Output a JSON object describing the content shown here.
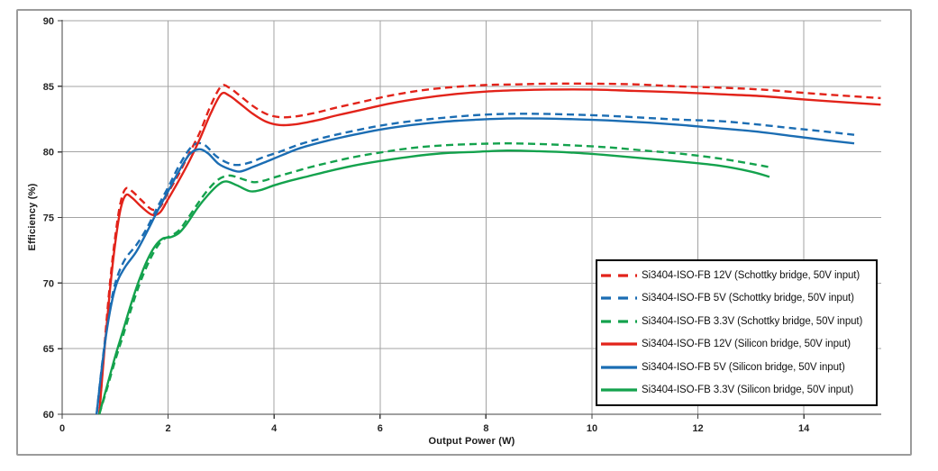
{
  "window": {
    "background": "#ffffff",
    "frame_border_color": "#9b9b9b"
  },
  "chart_data": {
    "type": "line",
    "title": "",
    "xlabel": "Output Power (W)",
    "ylabel": "Efficiency (%)",
    "xlim": [
      0,
      15.46
    ],
    "ylim": [
      60,
      90
    ],
    "x_ticks": [
      0,
      2,
      4,
      6,
      8,
      10,
      12,
      14
    ],
    "y_ticks": [
      60,
      65,
      70,
      75,
      80,
      85,
      90
    ],
    "grid": true,
    "legend_position": "inside-bottom-right",
    "colors": {
      "grid": "#a3a3a3",
      "axis": "#404040",
      "tick_text": "#262626",
      "legend_border": "#000000",
      "red": "#e2231a",
      "blue": "#1b6db3",
      "green": "#14a24d"
    },
    "series": [
      {
        "name": "Si3404-ISO-FB 12V (Schottky bridge, 50V input)",
        "color": "#e2231a",
        "dash": true,
        "points": [
          [
            0.7,
            60
          ],
          [
            0.8,
            65.3
          ],
          [
            0.9,
            69.9
          ],
          [
            1.0,
            73.5
          ],
          [
            1.1,
            76.1
          ],
          [
            1.2,
            77.2
          ],
          [
            1.32,
            77.0
          ],
          [
            1.5,
            76.3
          ],
          [
            1.7,
            75.6
          ],
          [
            1.85,
            75.8
          ],
          [
            2.0,
            76.9
          ],
          [
            2.2,
            78.3
          ],
          [
            2.4,
            79.9
          ],
          [
            2.6,
            81.5
          ],
          [
            2.8,
            83.5
          ],
          [
            3.0,
            85.0
          ],
          [
            3.15,
            84.9
          ],
          [
            3.35,
            84.3
          ],
          [
            3.6,
            83.5
          ],
          [
            3.85,
            82.9
          ],
          [
            4.1,
            82.65
          ],
          [
            4.4,
            82.7
          ],
          [
            4.8,
            83.0
          ],
          [
            5.2,
            83.4
          ],
          [
            5.7,
            83.85
          ],
          [
            6.2,
            84.3
          ],
          [
            6.8,
            84.7
          ],
          [
            7.4,
            84.95
          ],
          [
            8.0,
            85.1
          ],
          [
            8.6,
            85.15
          ],
          [
            9.2,
            85.2
          ],
          [
            10.0,
            85.2
          ],
          [
            10.8,
            85.15
          ],
          [
            11.6,
            85.0
          ],
          [
            12.4,
            84.9
          ],
          [
            13.2,
            84.75
          ],
          [
            14.0,
            84.5
          ],
          [
            14.7,
            84.3
          ],
          [
            15.45,
            84.1
          ]
        ]
      },
      {
        "name": "Si3404-ISO-FB 5V (Schottky bridge, 50V input)",
        "color": "#1b6db3",
        "dash": true,
        "points": [
          [
            0.65,
            60
          ],
          [
            0.75,
            63.7
          ],
          [
            0.85,
            66.8
          ],
          [
            0.95,
            69.1
          ],
          [
            1.05,
            70.6
          ],
          [
            1.2,
            71.9
          ],
          [
            1.4,
            72.9
          ],
          [
            1.6,
            74.2
          ],
          [
            1.8,
            75.8
          ],
          [
            2.0,
            77.3
          ],
          [
            2.2,
            78.9
          ],
          [
            2.4,
            80.2
          ],
          [
            2.55,
            80.65
          ],
          [
            2.7,
            80.5
          ],
          [
            2.9,
            79.7
          ],
          [
            3.1,
            79.2
          ],
          [
            3.3,
            79.0
          ],
          [
            3.55,
            79.2
          ],
          [
            3.8,
            79.6
          ],
          [
            4.1,
            80.0
          ],
          [
            4.5,
            80.6
          ],
          [
            5.0,
            81.15
          ],
          [
            5.5,
            81.6
          ],
          [
            6.0,
            82.0
          ],
          [
            6.6,
            82.35
          ],
          [
            7.2,
            82.6
          ],
          [
            7.8,
            82.8
          ],
          [
            8.4,
            82.9
          ],
          [
            9.0,
            82.9
          ],
          [
            9.6,
            82.85
          ],
          [
            10.3,
            82.75
          ],
          [
            11.0,
            82.6
          ],
          [
            11.7,
            82.45
          ],
          [
            12.4,
            82.35
          ],
          [
            13.1,
            82.1
          ],
          [
            13.8,
            81.8
          ],
          [
            14.4,
            81.55
          ],
          [
            14.95,
            81.3
          ]
        ]
      },
      {
        "name": "Si3404-ISO-FB 3.3V (Schottky bridge, 50V input)",
        "color": "#14a24d",
        "dash": true,
        "points": [
          [
            0.7,
            60
          ],
          [
            0.85,
            62.0
          ],
          [
            1.0,
            64.1
          ],
          [
            1.15,
            66.0
          ],
          [
            1.3,
            68.0
          ],
          [
            1.45,
            69.8
          ],
          [
            1.6,
            71.3
          ],
          [
            1.75,
            72.5
          ],
          [
            1.9,
            73.3
          ],
          [
            2.05,
            73.6
          ],
          [
            2.2,
            74.0
          ],
          [
            2.35,
            74.8
          ],
          [
            2.55,
            76.0
          ],
          [
            2.75,
            77.1
          ],
          [
            2.95,
            77.9
          ],
          [
            3.15,
            78.2
          ],
          [
            3.35,
            78.0
          ],
          [
            3.6,
            77.7
          ],
          [
            3.8,
            77.8
          ],
          [
            4.0,
            78.05
          ],
          [
            4.3,
            78.4
          ],
          [
            4.65,
            78.8
          ],
          [
            5.0,
            79.15
          ],
          [
            5.5,
            79.6
          ],
          [
            6.0,
            79.95
          ],
          [
            6.6,
            80.3
          ],
          [
            7.2,
            80.5
          ],
          [
            7.8,
            80.6
          ],
          [
            8.4,
            80.65
          ],
          [
            9.0,
            80.6
          ],
          [
            9.6,
            80.5
          ],
          [
            10.3,
            80.35
          ],
          [
            11.0,
            80.1
          ],
          [
            11.7,
            79.85
          ],
          [
            12.4,
            79.5
          ],
          [
            13.0,
            79.1
          ],
          [
            13.4,
            78.8
          ]
        ]
      },
      {
        "name": "Si3404-ISO-FB 12V (Silicon bridge, 50V input)",
        "color": "#e2231a",
        "dash": false,
        "points": [
          [
            0.7,
            60
          ],
          [
            0.8,
            65.0
          ],
          [
            0.9,
            69.4
          ],
          [
            1.0,
            73.0
          ],
          [
            1.1,
            75.6
          ],
          [
            1.2,
            76.7
          ],
          [
            1.32,
            76.5
          ],
          [
            1.5,
            75.8
          ],
          [
            1.7,
            75.2
          ],
          [
            1.85,
            75.4
          ],
          [
            2.0,
            76.4
          ],
          [
            2.2,
            77.8
          ],
          [
            2.4,
            79.3
          ],
          [
            2.6,
            81.0
          ],
          [
            2.8,
            82.9
          ],
          [
            3.0,
            84.4
          ],
          [
            3.15,
            84.3
          ],
          [
            3.35,
            83.7
          ],
          [
            3.6,
            82.9
          ],
          [
            3.85,
            82.3
          ],
          [
            4.1,
            82.05
          ],
          [
            4.4,
            82.1
          ],
          [
            4.8,
            82.4
          ],
          [
            5.2,
            82.8
          ],
          [
            5.7,
            83.25
          ],
          [
            6.2,
            83.7
          ],
          [
            6.8,
            84.1
          ],
          [
            7.4,
            84.4
          ],
          [
            8.0,
            84.6
          ],
          [
            8.6,
            84.7
          ],
          [
            9.2,
            84.75
          ],
          [
            10.0,
            84.75
          ],
          [
            10.8,
            84.65
          ],
          [
            11.6,
            84.55
          ],
          [
            12.4,
            84.4
          ],
          [
            13.2,
            84.25
          ],
          [
            14.0,
            84.0
          ],
          [
            14.7,
            83.8
          ],
          [
            15.45,
            83.6
          ]
        ]
      },
      {
        "name": "Si3404-ISO-FB 5V (Silicon bridge, 50V input)",
        "color": "#1b6db3",
        "dash": false,
        "points": [
          [
            0.65,
            60
          ],
          [
            0.75,
            63.6
          ],
          [
            0.85,
            66.6
          ],
          [
            0.95,
            68.8
          ],
          [
            1.05,
            70.2
          ],
          [
            1.2,
            71.3
          ],
          [
            1.4,
            72.4
          ],
          [
            1.6,
            73.9
          ],
          [
            1.8,
            75.5
          ],
          [
            2.0,
            77.0
          ],
          [
            2.2,
            78.5
          ],
          [
            2.4,
            79.8
          ],
          [
            2.58,
            80.2
          ],
          [
            2.75,
            79.9
          ],
          [
            2.95,
            79.1
          ],
          [
            3.15,
            78.7
          ],
          [
            3.35,
            78.5
          ],
          [
            3.6,
            78.85
          ],
          [
            3.85,
            79.25
          ],
          [
            4.15,
            79.75
          ],
          [
            4.5,
            80.3
          ],
          [
            5.0,
            80.85
          ],
          [
            5.5,
            81.3
          ],
          [
            6.0,
            81.7
          ],
          [
            6.6,
            82.05
          ],
          [
            7.2,
            82.3
          ],
          [
            7.8,
            82.45
          ],
          [
            8.4,
            82.55
          ],
          [
            9.0,
            82.55
          ],
          [
            9.6,
            82.5
          ],
          [
            10.3,
            82.4
          ],
          [
            11.0,
            82.25
          ],
          [
            11.7,
            82.05
          ],
          [
            12.4,
            81.8
          ],
          [
            13.1,
            81.55
          ],
          [
            13.8,
            81.2
          ],
          [
            14.4,
            80.9
          ],
          [
            14.95,
            80.65
          ]
        ]
      },
      {
        "name": "Si3404-ISO-FB 3.3V (Silicon bridge, 50V input)",
        "color": "#14a24d",
        "dash": false,
        "points": [
          [
            0.7,
            60
          ],
          [
            0.85,
            62.2
          ],
          [
            1.0,
            64.4
          ],
          [
            1.15,
            66.4
          ],
          [
            1.3,
            68.4
          ],
          [
            1.45,
            70.2
          ],
          [
            1.6,
            71.7
          ],
          [
            1.75,
            72.8
          ],
          [
            1.9,
            73.4
          ],
          [
            2.05,
            73.5
          ],
          [
            2.2,
            73.8
          ],
          [
            2.35,
            74.5
          ],
          [
            2.55,
            75.7
          ],
          [
            2.75,
            76.7
          ],
          [
            2.95,
            77.5
          ],
          [
            3.1,
            77.75
          ],
          [
            3.3,
            77.45
          ],
          [
            3.55,
            77.0
          ],
          [
            3.75,
            77.1
          ],
          [
            4.0,
            77.45
          ],
          [
            4.3,
            77.8
          ],
          [
            4.65,
            78.15
          ],
          [
            5.0,
            78.5
          ],
          [
            5.5,
            78.95
          ],
          [
            6.0,
            79.3
          ],
          [
            6.6,
            79.65
          ],
          [
            7.2,
            79.9
          ],
          [
            7.8,
            80.0
          ],
          [
            8.4,
            80.1
          ],
          [
            9.0,
            80.05
          ],
          [
            9.6,
            79.95
          ],
          [
            10.3,
            79.75
          ],
          [
            11.0,
            79.5
          ],
          [
            11.7,
            79.25
          ],
          [
            12.4,
            78.95
          ],
          [
            13.0,
            78.5
          ],
          [
            13.35,
            78.1
          ]
        ]
      }
    ]
  }
}
